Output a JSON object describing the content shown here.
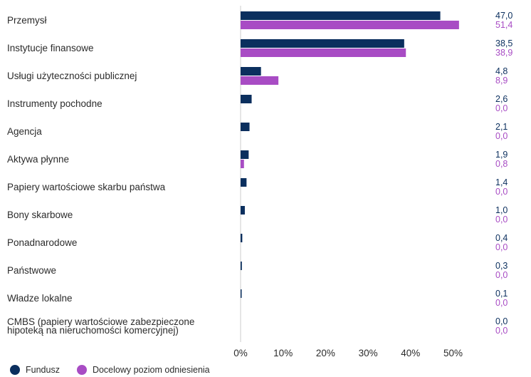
{
  "colors": {
    "fund": "#0b2f5e",
    "benchmark": "#a84cc4",
    "axis": "#cccccc"
  },
  "legend": {
    "fund_label": "Fundusz",
    "benchmark_label": "Docelowy poziom odniesienia"
  },
  "chart_data": {
    "type": "bar",
    "orientation": "horizontal",
    "categories": [
      "Przemysł",
      "Instytucje finansowe",
      "Usługi użyteczności publicznej",
      "Instrumenty pochodne",
      "Agencja",
      "Aktywa płynne",
      "Papiery wartościowe skarbu państwa",
      "Bony skarbowe",
      "Ponadnarodowe",
      "Państwowe",
      "Władze lokalne",
      "CMBS (papiery wartościowe zabezpieczone hipoteką na nieruchomości komercyjnej)"
    ],
    "series": [
      {
        "name": "Fundusz",
        "values": [
          47.0,
          38.5,
          4.8,
          2.6,
          2.1,
          1.9,
          1.4,
          1.0,
          0.4,
          0.3,
          0.1,
          0.0
        ],
        "labels": [
          "47,0",
          "38,5",
          "4,8",
          "2,6",
          "2,1",
          "1,9",
          "1,4",
          "1,0",
          "0,4",
          "0,3",
          "0,1",
          "0,0"
        ]
      },
      {
        "name": "Docelowy poziom odniesienia",
        "values": [
          51.4,
          38.9,
          8.9,
          0.0,
          0.0,
          0.8,
          0.0,
          0.0,
          0.0,
          0.0,
          0.0,
          0.0
        ],
        "labels": [
          "51,4",
          "38,9",
          "8,9",
          "0,0",
          "0,0",
          "0,8",
          "0,0",
          "0,0",
          "0,0",
          "0,0",
          "0,0",
          "0,0"
        ]
      }
    ],
    "xlim": [
      0,
      60
    ],
    "xticks": [
      "0%",
      "10%",
      "20%",
      "30%",
      "40%",
      "50%"
    ],
    "grid": false,
    "legend_position": "bottom-left"
  }
}
